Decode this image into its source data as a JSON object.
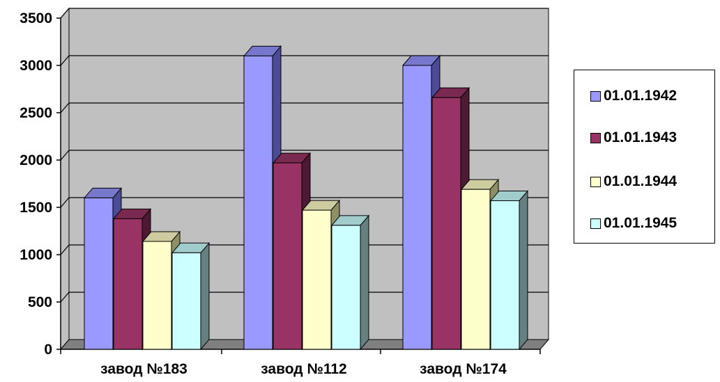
{
  "chart_data": {
    "type": "bar",
    "categories": [
      "завод №183",
      "завод №112",
      "завод №174"
    ],
    "series": [
      {
        "name": "01.01.1942",
        "values": [
          1600,
          3100,
          3000
        ],
        "color": "#9999ff",
        "side_color": "#4b4b99",
        "top_color": "#7777cc"
      },
      {
        "name": "01.01.1943",
        "values": [
          1380,
          1970,
          2660
        ],
        "color": "#993366",
        "side_color": "#4d1a33",
        "top_color": "#7a2950"
      },
      {
        "name": "01.01.1944",
        "values": [
          1140,
          1470,
          1690
        ],
        "color": "#ffffcc",
        "side_color": "#8f8f66",
        "top_color": "#cccca0"
      },
      {
        "name": "01.01.1945",
        "values": [
          1020,
          1310,
          1570
        ],
        "color": "#ccffff",
        "side_color": "#668080",
        "top_color": "#a0cccc"
      }
    ],
    "y_ticks": [
      "0",
      "500",
      "1000",
      "1500",
      "2000",
      "2500",
      "3000",
      "3500"
    ],
    "ylim": [
      0,
      3500
    ],
    "grid": true,
    "legend_position": "right",
    "plot_color": "#c0c0c0",
    "wall_color": "#808080"
  }
}
